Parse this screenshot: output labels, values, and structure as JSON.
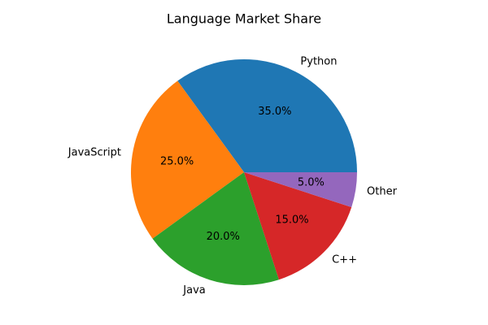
{
  "chart_data": {
    "type": "pie",
    "title": "Language Market Share",
    "categories": [
      "Python",
      "JavaScript",
      "Java",
      "C++",
      "Other"
    ],
    "values": [
      35,
      25,
      20,
      15,
      5
    ],
    "value_labels": [
      "35.0%",
      "25.0%",
      "20.0%",
      "15.0%",
      "5.0%"
    ],
    "colors": [
      "#1f77b4",
      "#ff7f0e",
      "#2ca02c",
      "#d62728",
      "#9467bd"
    ]
  }
}
